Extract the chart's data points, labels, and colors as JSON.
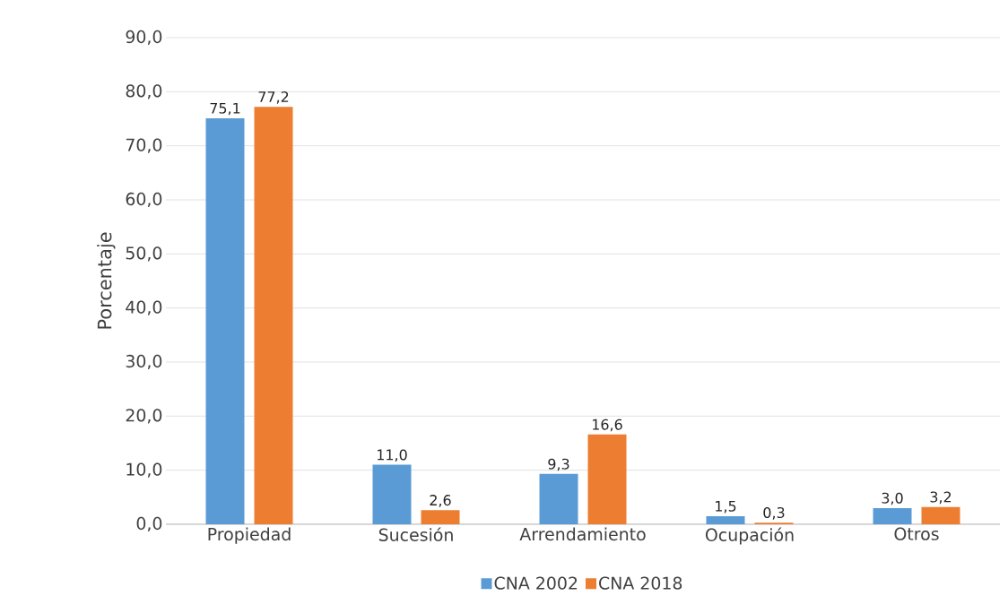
{
  "chart_data": {
    "type": "bar",
    "ylabel": "Porcentaje",
    "categories": [
      "Propiedad",
      "Sucesión",
      "Arrendamiento",
      "Ocupación",
      "Otros"
    ],
    "series": [
      {
        "name": "CNA 2002",
        "color": "#5b9bd5",
        "values": [
          75.1,
          11.0,
          9.3,
          1.5,
          3.0
        ],
        "value_labels": [
          "75,1",
          "11,0",
          "9,3",
          "1,5",
          "3,0"
        ]
      },
      {
        "name": "CNA 2018",
        "color": "#ed7d31",
        "values": [
          77.2,
          2.6,
          16.6,
          0.3,
          3.2
        ],
        "value_labels": [
          "77,2",
          "2,6",
          "16,6",
          "0,3",
          "3,2"
        ]
      }
    ],
    "ylim": [
      0,
      90
    ],
    "yticks": [
      {
        "value": 0,
        "label": "0,0"
      },
      {
        "value": 10,
        "label": "10,0"
      },
      {
        "value": 20,
        "label": "20,0"
      },
      {
        "value": 30,
        "label": "30,0"
      },
      {
        "value": 40,
        "label": "40,0"
      },
      {
        "value": 50,
        "label": "50,0"
      },
      {
        "value": 60,
        "label": "60,0"
      },
      {
        "value": 70,
        "label": "70,0"
      },
      {
        "value": 80,
        "label": "80,0"
      },
      {
        "value": 90,
        "label": "90,0"
      }
    ],
    "grid": "y",
    "legend": "bottom"
  }
}
